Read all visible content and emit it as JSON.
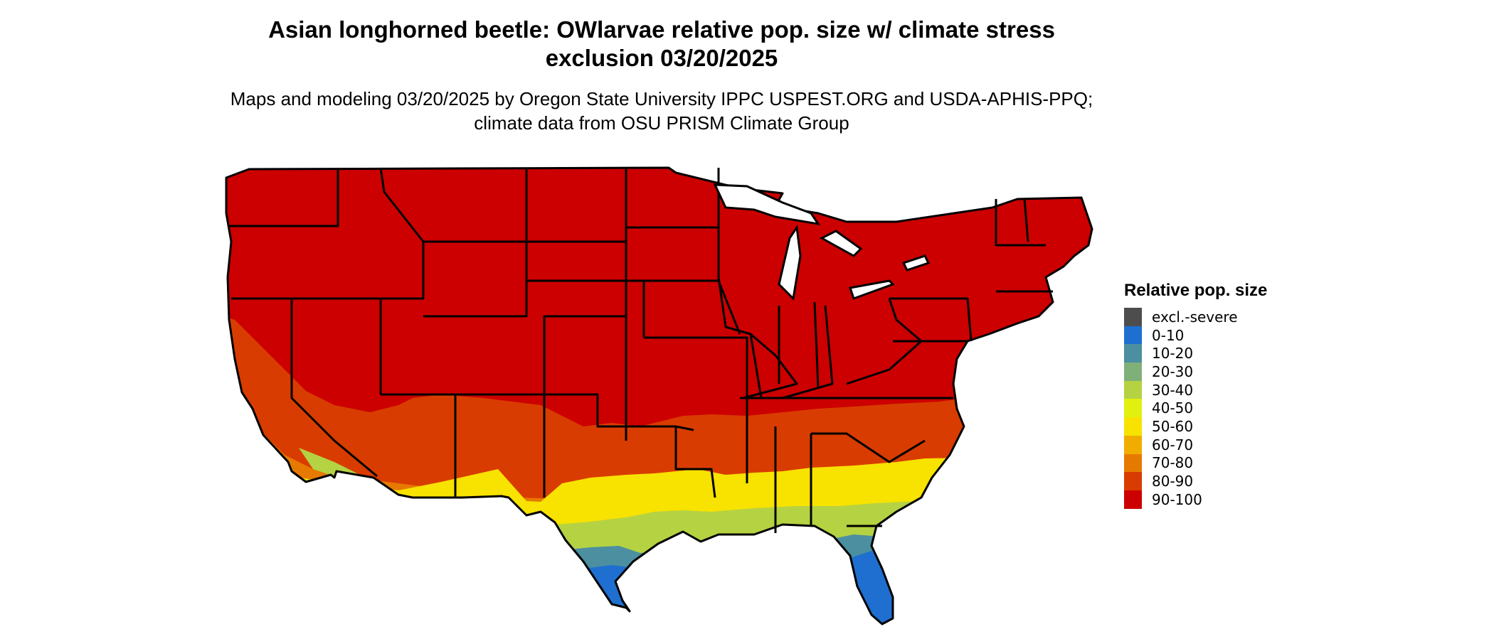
{
  "header": {
    "title": "Asian longhorned beetle: OWlarvae relative pop. size w/ climate stress exclusion 03/20/2025",
    "subtitle": "Maps and modeling 03/20/2025 by Oregon State University IPPC USPEST.ORG and USDA-APHIS-PPQ; climate data from OSU PRISM Climate Group"
  },
  "legend": {
    "title": "Relative pop. size",
    "items": [
      {
        "label": "excl.-severe",
        "color": "#4d4d4d"
      },
      {
        "label": "0-10",
        "color": "#1f6fd1"
      },
      {
        "label": "10-20",
        "color": "#4b8fa0"
      },
      {
        "label": "20-30",
        "color": "#7fb07a"
      },
      {
        "label": "30-40",
        "color": "#b5d242"
      },
      {
        "label": "40-50",
        "color": "#e2f00f"
      },
      {
        "label": "50-60",
        "color": "#f7e200"
      },
      {
        "label": "60-70",
        "color": "#f0ad00"
      },
      {
        "label": "70-80",
        "color": "#e67a00"
      },
      {
        "label": "80-90",
        "color": "#d93c00"
      },
      {
        "label": "90-100",
        "color": "#cc0000"
      }
    ]
  }
}
